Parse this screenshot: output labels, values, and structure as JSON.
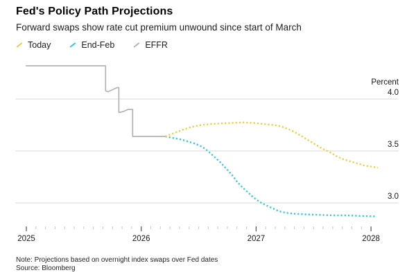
{
  "header": {
    "title": "Fed's Policy Path Projections",
    "subtitle": "Forward swaps show rate cut premium unwound since start of March"
  },
  "legend": {
    "items": [
      {
        "label": "Today",
        "color": "#F3CB3F"
      },
      {
        "label": "End-Feb",
        "color": "#35C7DE"
      },
      {
        "label": "EFFR",
        "color": "#B3B3B3"
      }
    ]
  },
  "footer": {
    "note": "Note: Projections based on overnight index swaps over Fed dates",
    "source": "Source: Bloomberg"
  },
  "chart_data": {
    "type": "line",
    "unit_label": "Percent",
    "grid": "horizontal-only",
    "legend_position": "top-left",
    "x_axis": {
      "range": [
        2024.99,
        2028.2
      ],
      "ticks": [
        {
          "value": 2025,
          "label": "2025"
        },
        {
          "value": 2026,
          "label": "2026"
        },
        {
          "value": 2027,
          "label": "2027"
        },
        {
          "value": 2028,
          "label": "2028"
        }
      ],
      "minor_ticks_per_year": 12
    },
    "y_axis": {
      "range": [
        2.72,
        4.45
      ],
      "gridlines": [
        {
          "value": 4.0,
          "label": "4.0"
        },
        {
          "value": 3.5,
          "label": "3.5"
        },
        {
          "value": 3.0,
          "label": "3.0"
        }
      ]
    },
    "series": [
      {
        "name": "EFFR",
        "color": "#B3B3B3",
        "style": "solid",
        "points": [
          [
            2024.995,
            4.32
          ],
          [
            2025.69,
            4.32
          ],
          [
            2025.69,
            4.08
          ],
          [
            2025.71,
            4.07
          ],
          [
            2025.75,
            4.09
          ],
          [
            2025.79,
            4.11
          ],
          [
            2025.805,
            4.11
          ],
          [
            2025.805,
            3.87
          ],
          [
            2025.845,
            3.88
          ],
          [
            2025.885,
            3.9
          ],
          [
            2025.925,
            3.9
          ],
          [
            2025.925,
            3.64
          ],
          [
            2026.21,
            3.64
          ]
        ]
      },
      {
        "name": "End-Feb",
        "color": "#35C7DE",
        "style": "dotted",
        "points": [
          [
            2026.21,
            3.64
          ],
          [
            2026.28,
            3.625
          ],
          [
            2026.35,
            3.61
          ],
          [
            2026.41,
            3.59
          ],
          [
            2026.47,
            3.57
          ],
          [
            2026.53,
            3.54
          ],
          [
            2026.58,
            3.5
          ],
          [
            2026.64,
            3.44
          ],
          [
            2026.69,
            3.39
          ],
          [
            2026.74,
            3.33
          ],
          [
            2026.79,
            3.27
          ],
          [
            2026.83,
            3.21
          ],
          [
            2026.88,
            3.15
          ],
          [
            2026.93,
            3.1
          ],
          [
            2026.98,
            3.05
          ],
          [
            2027.03,
            3.01
          ],
          [
            2027.08,
            2.98
          ],
          [
            2027.14,
            2.95
          ],
          [
            2027.2,
            2.92
          ],
          [
            2027.26,
            2.905
          ],
          [
            2027.34,
            2.895
          ],
          [
            2027.43,
            2.89
          ],
          [
            2027.55,
            2.885
          ],
          [
            2027.67,
            2.88
          ],
          [
            2027.79,
            2.88
          ],
          [
            2027.91,
            2.875
          ],
          [
            2028.05,
            2.87
          ]
        ]
      },
      {
        "name": "Today",
        "color": "#F3CB3F",
        "style": "dotted",
        "points": [
          [
            2026.21,
            3.64
          ],
          [
            2026.28,
            3.67
          ],
          [
            2026.35,
            3.7
          ],
          [
            2026.43,
            3.73
          ],
          [
            2026.52,
            3.75
          ],
          [
            2026.61,
            3.76
          ],
          [
            2026.7,
            3.765
          ],
          [
            2026.79,
            3.77
          ],
          [
            2026.88,
            3.775
          ],
          [
            2026.97,
            3.77
          ],
          [
            2027.06,
            3.76
          ],
          [
            2027.15,
            3.75
          ],
          [
            2027.21,
            3.74
          ],
          [
            2027.28,
            3.71
          ],
          [
            2027.34,
            3.68
          ],
          [
            2027.4,
            3.64
          ],
          [
            2027.46,
            3.6
          ],
          [
            2027.52,
            3.56
          ],
          [
            2027.58,
            3.52
          ],
          [
            2027.64,
            3.49
          ],
          [
            2027.7,
            3.45
          ],
          [
            2027.76,
            3.42
          ],
          [
            2027.82,
            3.4
          ],
          [
            2027.88,
            3.38
          ],
          [
            2027.94,
            3.36
          ],
          [
            2028.0,
            3.35
          ],
          [
            2028.06,
            3.34
          ]
        ]
      }
    ]
  }
}
